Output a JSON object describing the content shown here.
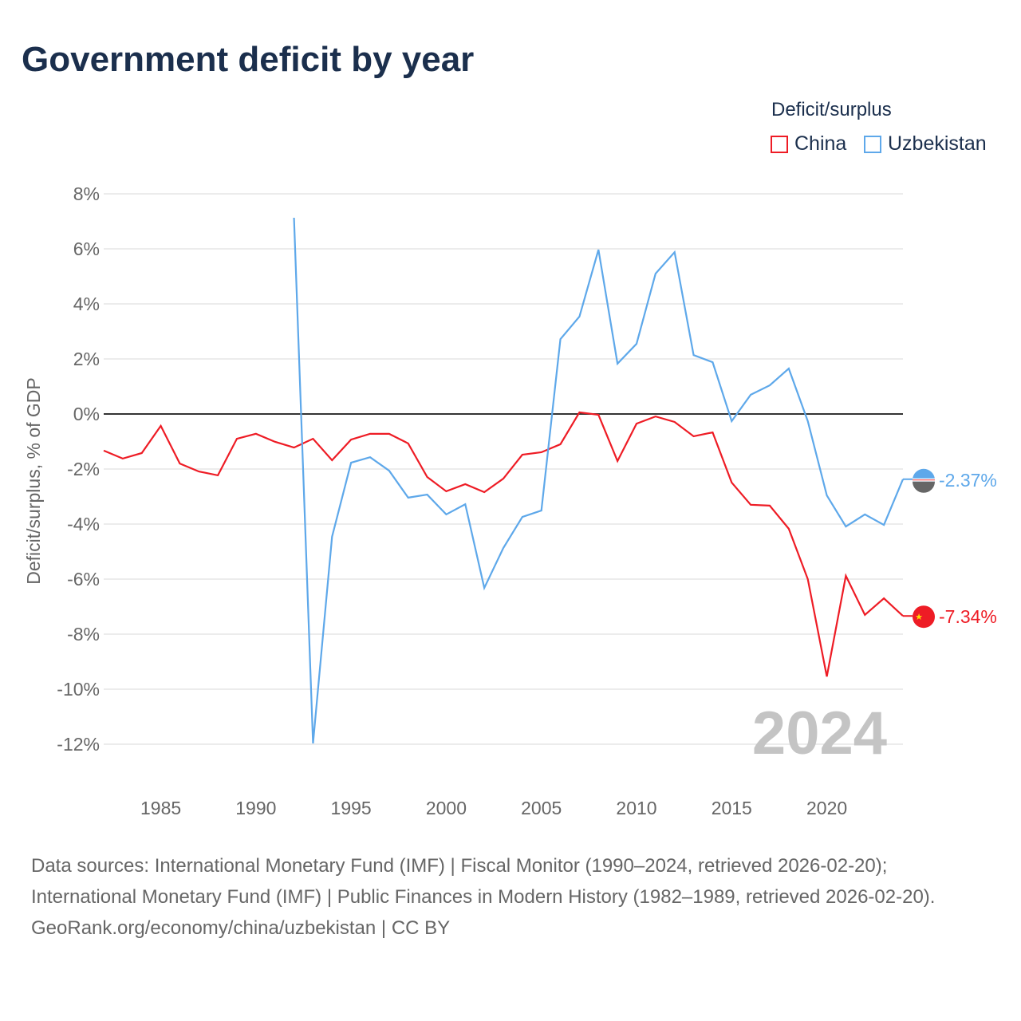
{
  "title": "Government deficit by year",
  "legend": {
    "title": "Deficit/surplus",
    "items": [
      {
        "label": "China",
        "color": "#ee1c25"
      },
      {
        "label": "Uzbekistan",
        "color": "#5ea8ea"
      }
    ]
  },
  "watermark_year": "2024",
  "chart_data": {
    "type": "line",
    "title": "Government deficit by year",
    "xlabel": "",
    "ylabel": "Deficit/surplus, % of GDP",
    "ylim": [
      -12,
      8
    ],
    "xlim": [
      1982,
      2024
    ],
    "yticks": [
      8,
      6,
      4,
      2,
      0,
      -2,
      -4,
      -6,
      -8,
      -10,
      -12
    ],
    "ytick_labels": [
      "8%",
      "6%",
      "4%",
      "2%",
      "0%",
      "-2%",
      "-4%",
      "-6%",
      "-8%",
      "-10%",
      "-12%"
    ],
    "xticks": [
      1985,
      1990,
      1995,
      2000,
      2005,
      2010,
      2015,
      2020
    ],
    "xtick_labels": [
      "1985",
      "1990",
      "1995",
      "2000",
      "2005",
      "2010",
      "2015",
      "2020"
    ],
    "grid": true,
    "legend_position": "top-right",
    "series": [
      {
        "name": "China",
        "color": "#ee1c25",
        "end_label": "-7.34%",
        "x": [
          1982,
          1983,
          1984,
          1985,
          1986,
          1987,
          1988,
          1989,
          1990,
          1991,
          1992,
          1993,
          1994,
          1995,
          1996,
          1997,
          1998,
          1999,
          2000,
          2001,
          2002,
          2003,
          2004,
          2005,
          2006,
          2007,
          2008,
          2009,
          2010,
          2011,
          2012,
          2013,
          2014,
          2015,
          2016,
          2017,
          2018,
          2019,
          2020,
          2021,
          2022,
          2023,
          2024
        ],
        "values": [
          -1.33,
          -1.62,
          -1.42,
          -0.43,
          -1.8,
          -2.09,
          -2.23,
          -0.9,
          -0.72,
          -1.01,
          -1.22,
          -0.9,
          -1.68,
          -0.93,
          -0.72,
          -0.72,
          -1.07,
          -2.29,
          -2.81,
          -2.55,
          -2.84,
          -2.35,
          -1.48,
          -1.39,
          -1.1,
          0.06,
          -0.03,
          -1.71,
          -0.35,
          -0.09,
          -0.29,
          -0.81,
          -0.67,
          -2.49,
          -3.3,
          -3.33,
          -4.17,
          -6.0,
          -9.54,
          -5.88,
          -7.3,
          -6.7,
          -7.34
        ]
      },
      {
        "name": "Uzbekistan",
        "color": "#5ea8ea",
        "end_label": "-2.37%",
        "x": [
          1992,
          1993,
          1994,
          1995,
          1996,
          1997,
          1998,
          1999,
          2000,
          2001,
          2002,
          2003,
          2004,
          2005,
          2006,
          2007,
          2008,
          2009,
          2010,
          2011,
          2012,
          2013,
          2014,
          2015,
          2016,
          2017,
          2018,
          2019,
          2020,
          2021,
          2022,
          2023,
          2024
        ],
        "values": [
          7.13,
          -11.97,
          -4.46,
          -1.77,
          -1.57,
          -2.06,
          -3.04,
          -2.93,
          -3.65,
          -3.28,
          -6.32,
          -4.87,
          -3.74,
          -3.51,
          2.72,
          3.54,
          5.97,
          1.83,
          2.55,
          5.1,
          5.88,
          2.14,
          1.88,
          -0.26,
          0.7,
          1.04,
          1.65,
          -0.26,
          -2.96,
          -4.09,
          -3.65,
          -4.03,
          -2.37
        ]
      }
    ]
  },
  "footer": {
    "sources": "Data sources: International Monetary Fund (IMF) | Fiscal Monitor (1990–2024, retrieved 2026-02-20); International Monetary Fund (IMF) | Public Finances in Modern History (1982–1989, retrieved 2026-02-20).",
    "credit": "GeoRank.org/economy/china/uzbekistan | CC BY"
  }
}
